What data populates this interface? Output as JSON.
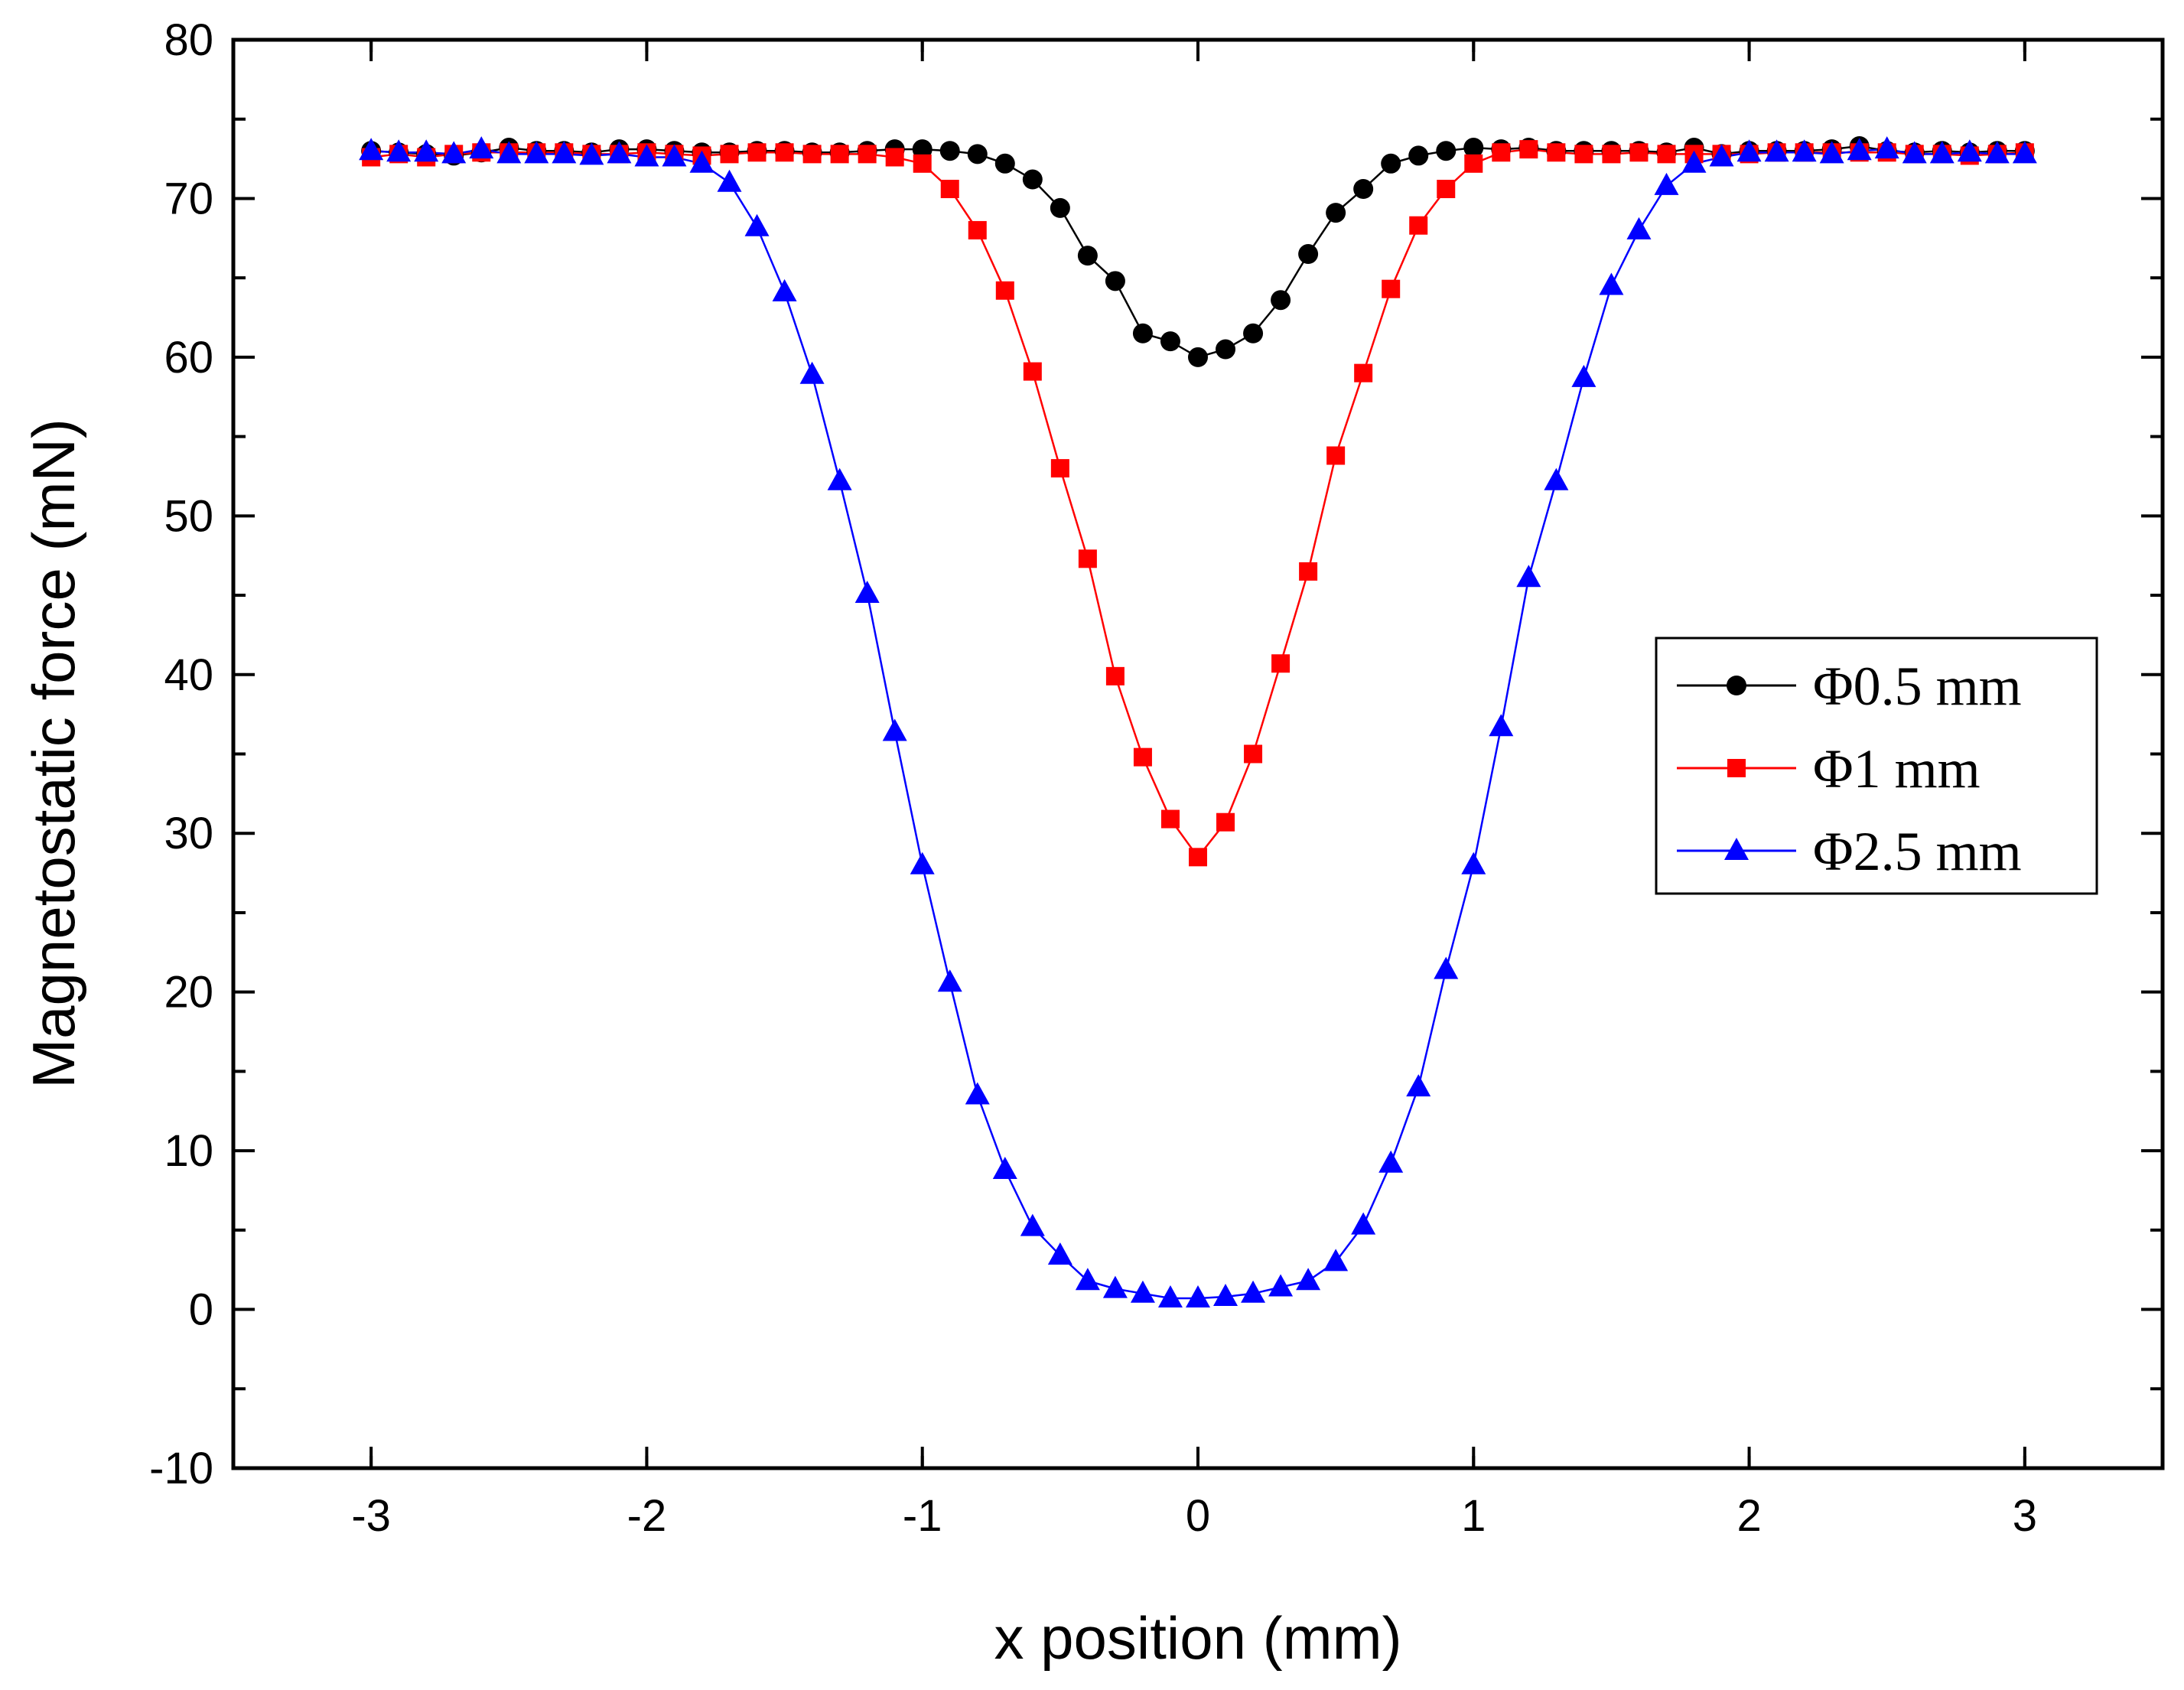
{
  "chart_data": {
    "type": "line",
    "title": "",
    "xlabel": "x position (mm)",
    "ylabel": "Magnetostatic force (mN)",
    "xlim": [
      -3.5,
      3.5
    ],
    "ylim": [
      -10,
      80
    ],
    "xticks": [
      -3,
      -2,
      -1,
      0,
      1,
      2,
      3
    ],
    "xtick_labels": [
      "-3",
      "-2",
      "-1",
      "0",
      "1",
      "2",
      "3"
    ],
    "yticks": [
      -10,
      0,
      10,
      20,
      30,
      40,
      50,
      60,
      70,
      80
    ],
    "ytick_labels": [
      "-10",
      "0",
      "10",
      "20",
      "30",
      "40",
      "50",
      "60",
      "70",
      "80"
    ],
    "grid": false,
    "legend_position": "right",
    "x": [
      -3.0,
      -2.9,
      -2.8,
      -2.7,
      -2.6,
      -2.5,
      -2.4,
      -2.3,
      -2.2,
      -2.1,
      -2.0,
      -1.9,
      -1.8,
      -1.7,
      -1.6,
      -1.5,
      -1.4,
      -1.3,
      -1.2,
      -1.1,
      -1.0,
      -0.9,
      -0.8,
      -0.7,
      -0.6,
      -0.5,
      -0.4,
      -0.3,
      -0.2,
      -0.1,
      0.0,
      0.1,
      0.2,
      0.3,
      0.4,
      0.5,
      0.6,
      0.7,
      0.8,
      0.9,
      1.0,
      1.1,
      1.2,
      1.3,
      1.4,
      1.5,
      1.6,
      1.7,
      1.8,
      1.9,
      2.0,
      2.1,
      2.2,
      2.3,
      2.4,
      2.5,
      2.6,
      2.7,
      2.8,
      2.9,
      3.0
    ],
    "series": [
      {
        "name": "Φ0.5 mm",
        "color": "#000000",
        "marker": "circle",
        "values": [
          73.0,
          72.9,
          72.8,
          72.7,
          72.9,
          73.2,
          73.0,
          73.0,
          72.9,
          73.1,
          73.1,
          73.0,
          72.9,
          72.9,
          73.0,
          73.0,
          72.9,
          72.9,
          73.0,
          73.1,
          73.1,
          73.0,
          72.8,
          72.2,
          71.2,
          69.4,
          66.4,
          64.8,
          61.5,
          61.0,
          60.0,
          60.5,
          61.5,
          63.6,
          66.5,
          69.1,
          70.6,
          72.2,
          72.7,
          73.0,
          73.2,
          73.1,
          73.2,
          73.0,
          73.0,
          73.0,
          73.0,
          72.9,
          73.2,
          72.8,
          73.0,
          73.0,
          73.0,
          73.1,
          73.3,
          73.0,
          72.9,
          73.0,
          72.9,
          73.0,
          73.0
        ]
      },
      {
        "name": "Φ1 mm",
        "color": "#ff0000",
        "marker": "square",
        "values": [
          72.6,
          72.8,
          72.6,
          72.8,
          72.9,
          72.9,
          72.9,
          72.9,
          72.8,
          72.8,
          72.9,
          72.8,
          72.7,
          72.8,
          72.9,
          72.9,
          72.8,
          72.8,
          72.8,
          72.6,
          72.2,
          70.6,
          68.0,
          64.2,
          59.1,
          53.0,
          47.3,
          39.9,
          34.8,
          30.9,
          28.5,
          30.7,
          35.0,
          40.7,
          46.5,
          53.8,
          59.0,
          64.3,
          68.3,
          70.6,
          72.2,
          72.9,
          73.1,
          72.9,
          72.8,
          72.8,
          72.9,
          72.8,
          72.8,
          72.8,
          72.8,
          72.9,
          72.9,
          72.9,
          72.9,
          72.9,
          72.8,
          72.8,
          72.7,
          72.8,
          72.9
        ]
      },
      {
        "name": "Φ2.5 mm",
        "color": "#0000ff",
        "marker": "triangle",
        "values": [
          73.0,
          72.9,
          72.9,
          72.8,
          73.1,
          72.8,
          72.8,
          72.8,
          72.7,
          72.8,
          72.6,
          72.6,
          72.2,
          71.0,
          68.2,
          64.1,
          58.9,
          52.2,
          45.1,
          36.4,
          28.0,
          20.6,
          13.5,
          8.8,
          5.2,
          3.4,
          1.8,
          1.3,
          1.0,
          0.7,
          0.7,
          0.8,
          1.0,
          1.4,
          1.8,
          3.0,
          5.3,
          9.2,
          14.0,
          21.4,
          28.0,
          36.7,
          46.1,
          52.2,
          58.7,
          64.5,
          68.0,
          70.8,
          72.2,
          72.6,
          72.9,
          72.9,
          72.9,
          72.8,
          73.0,
          73.1,
          72.8,
          72.8,
          72.9,
          72.8,
          72.8
        ]
      }
    ]
  }
}
